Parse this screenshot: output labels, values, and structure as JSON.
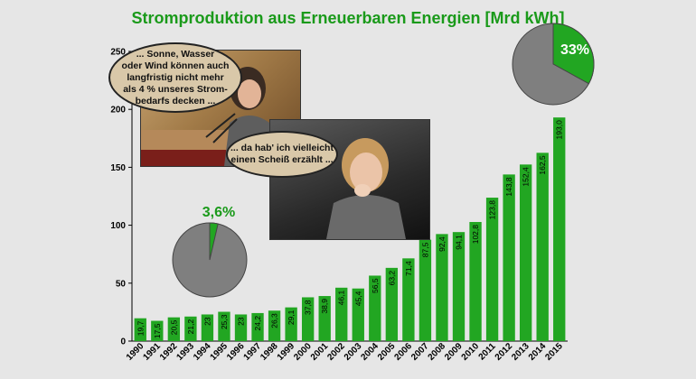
{
  "title": "Stromproduktion aus Erneuerbaren Energien [Mrd kWh]",
  "quote1": "... Sonne, Wasser\noder Wind können auch\nlangfristig nicht mehr\nals 4 % unseres Strom-\nbedarfs decken ...",
  "quote2": "... da hab' ich vielleicht\neinen Scheiß erzählt ...",
  "pie_small": {
    "label": "3,6%",
    "share": 0.036
  },
  "pie_large": {
    "label": "33%",
    "share": 0.33
  },
  "colors": {
    "bar": "#22a622",
    "pie_green": "#22a622",
    "pie_gray": "#7f7f7f",
    "title": "#1a9a1a"
  },
  "chart_data": {
    "type": "bar",
    "categories": [
      "1990",
      "1991",
      "1992",
      "1993",
      "1994",
      "1995",
      "1996",
      "1997",
      "1998",
      "1999",
      "2000",
      "2001",
      "2002",
      "2003",
      "2004",
      "2005",
      "2006",
      "2007",
      "2008",
      "2009",
      "2010",
      "2011",
      "2012",
      "2013",
      "2014",
      "2015"
    ],
    "values": [
      19.7,
      17.5,
      20.5,
      21.2,
      23,
      25.3,
      23,
      24.2,
      26.3,
      29.1,
      37.8,
      38.9,
      46.1,
      45.4,
      56.5,
      63.2,
      71.4,
      87.5,
      92.4,
      94.1,
      102.8,
      123.8,
      143.8,
      152.4,
      162.5,
      193.0
    ],
    "labels": [
      "19,7",
      "17,5",
      "20,5",
      "21,2",
      "23",
      "25,3",
      "23",
      "24,2",
      "26,3",
      "29,1",
      "37,8",
      "38,9",
      "46,1",
      "45,4",
      "56,5",
      "63,2",
      "71,4",
      "87,5",
      "92,4",
      "94,1",
      "102,8",
      "123,8",
      "143,8",
      "152,4",
      "162,5",
      "193,0"
    ],
    "yticks": [
      "0",
      "50",
      "100",
      "150",
      "200",
      "250"
    ],
    "ylim": [
      0,
      250
    ],
    "grid": false
  }
}
